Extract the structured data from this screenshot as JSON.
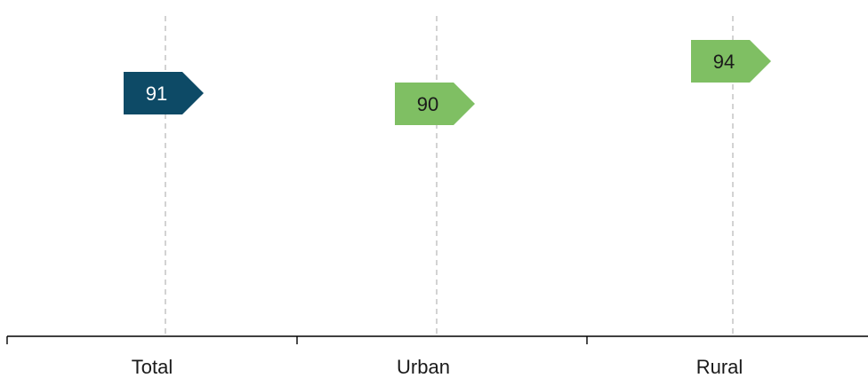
{
  "chart_data": {
    "type": "scatter",
    "title": "",
    "xlabel": "",
    "ylabel": "",
    "categories": [
      "Total",
      "Urban",
      "Rural"
    ],
    "values": [
      91,
      90,
      94
    ],
    "value_labels": [
      "91",
      "90",
      "94"
    ],
    "point_colors": [
      "#0d4a66",
      "#7fbf63",
      "#7fbf63"
    ],
    "label_colors": [
      "#ffffff",
      "#1a1a1a",
      "#1a1a1a"
    ],
    "marker_shape": "pentagon-arrow-right",
    "y_axis_visible": false,
    "grid": "vertical dashed guides at category centers",
    "legend": "none"
  }
}
